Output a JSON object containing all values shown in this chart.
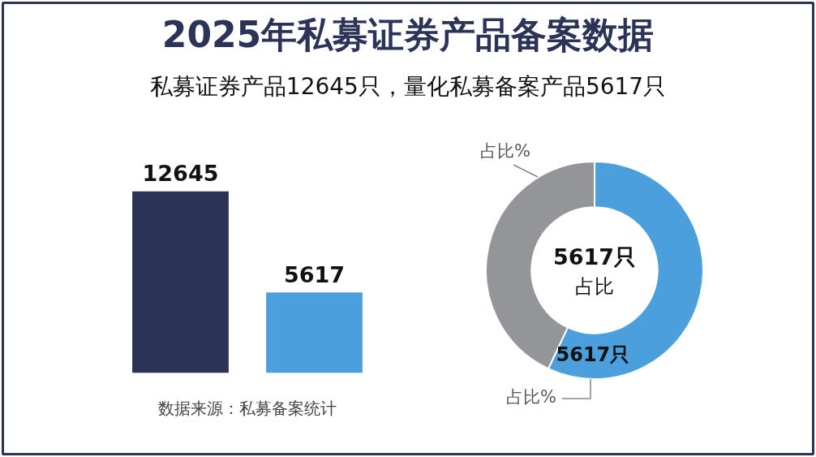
{
  "chart_data": [
    {
      "type": "bar",
      "title": "2025年私募证券产品备案数据",
      "subtitle": "私募证券产品12645只，量化私募备案产品5617只",
      "categories": [
        null,
        null
      ],
      "values": [
        12645,
        5617
      ],
      "colors": [
        "#2b3356",
        "#4a9fdc"
      ],
      "data_labels": true,
      "legend": false,
      "annotations": [
        "数据来源：私募备案统计"
      ]
    },
    {
      "type": "donut",
      "categories": [
        null,
        null
      ],
      "values": [
        57,
        43
      ],
      "colors": [
        "#4a9fdc",
        "#939598"
      ],
      "legend": false,
      "annotations": [
        "5617只",
        "占比",
        "5617只",
        "占比%",
        "占比%"
      ]
    }
  ]
}
